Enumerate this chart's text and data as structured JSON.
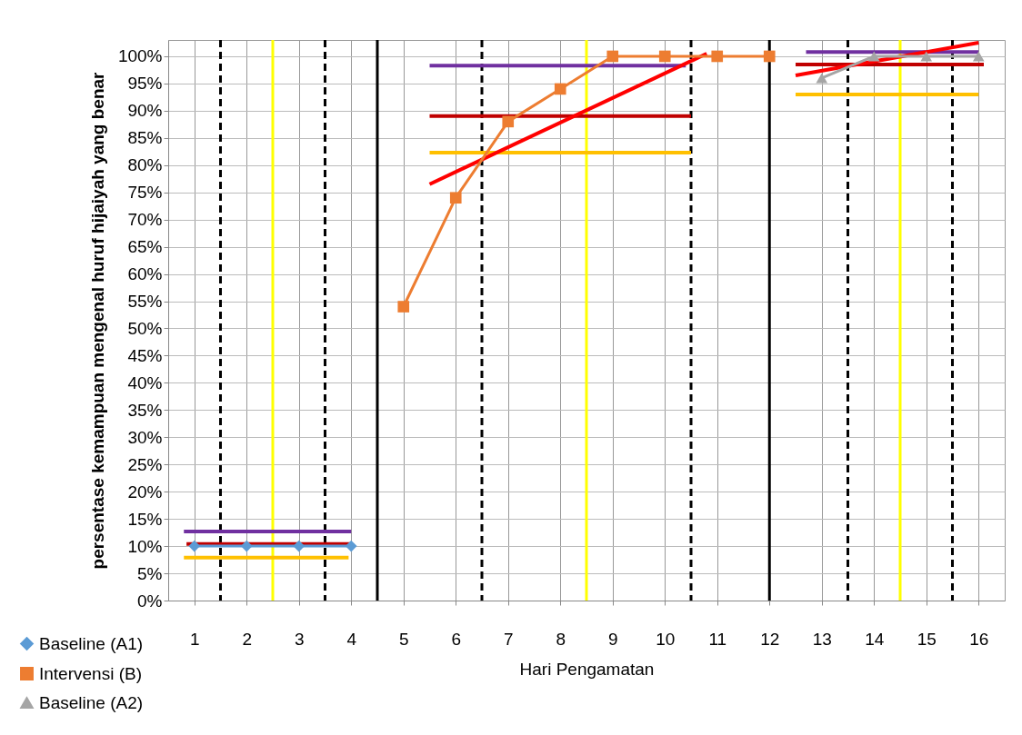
{
  "chart_data": {
    "type": "line",
    "xlabel": "Hari Pengamatan",
    "ylabel": "persentase  kemampuan mengenal huruf hijaiyah yang benar",
    "xlim": [
      0.5,
      16.5
    ],
    "xticks": [
      1,
      2,
      3,
      4,
      5,
      6,
      7,
      8,
      9,
      10,
      11,
      12,
      13,
      14,
      15,
      16
    ],
    "ylim": [
      0,
      103
    ],
    "yticks": [
      {
        "value": 0,
        "label": "0%"
      },
      {
        "value": 5,
        "label": "5%"
      },
      {
        "value": 10,
        "label": "10%"
      },
      {
        "value": 15,
        "label": "15%"
      },
      {
        "value": 20,
        "label": "20%"
      },
      {
        "value": 25,
        "label": "25%"
      },
      {
        "value": 30,
        "label": "30%"
      },
      {
        "value": 35,
        "label": "35%"
      },
      {
        "value": 40,
        "label": "40%"
      },
      {
        "value": 45,
        "label": "45%"
      },
      {
        "value": 50,
        "label": "50%"
      },
      {
        "value": 55,
        "label": "55%"
      },
      {
        "value": 60,
        "label": "60%"
      },
      {
        "value": 65,
        "label": "65%"
      },
      {
        "value": 70,
        "label": "70%"
      },
      {
        "value": 75,
        "label": "75%"
      },
      {
        "value": 80,
        "label": "80%"
      },
      {
        "value": 85,
        "label": "85%"
      },
      {
        "value": 90,
        "label": "90%"
      },
      {
        "value": 95,
        "label": "95%"
      },
      {
        "value": 100,
        "label": "100%"
      }
    ],
    "grid": true,
    "legend": "bottom left",
    "series": [
      {
        "name": "Baseline (A1)",
        "color": "#5b9bd5",
        "marker": "diamond",
        "x": [
          1,
          2,
          3,
          4
        ],
        "values": [
          10,
          10,
          10,
          10
        ]
      },
      {
        "name": "Intervensi (B)",
        "color": "#ed7d31",
        "marker": "square",
        "x": [
          5,
          6,
          7,
          8,
          9,
          10,
          11,
          12
        ],
        "values": [
          54,
          74,
          88,
          94,
          100,
          100,
          100,
          100
        ]
      },
      {
        "name": "Baseline (A2)",
        "color": "#a5a5a5",
        "marker": "triangle",
        "x": [
          13,
          14,
          15,
          16
        ],
        "values": [
          96,
          100,
          100,
          100
        ]
      },
      {
        "color": "#7030a0",
        "marker": "none",
        "x": [
          0.8,
          4.0
        ],
        "values": [
          12.7,
          12.7
        ]
      },
      {
        "color": "#c00000",
        "marker": "none",
        "x": [
          0.85,
          4.0
        ],
        "values": [
          10.4,
          10.4
        ]
      },
      {
        "color": "#ffc000",
        "marker": "none",
        "x": [
          0.8,
          3.95
        ],
        "values": [
          7.9,
          7.9
        ]
      },
      {
        "color": "#7030a0",
        "marker": "none",
        "x": [
          5.5,
          10.4
        ],
        "values": [
          98.3,
          98.3
        ]
      },
      {
        "color": "#c00000",
        "marker": "none",
        "x": [
          5.5,
          10.5
        ],
        "values": [
          89,
          89
        ]
      },
      {
        "color": "#ffc000",
        "marker": "none",
        "x": [
          5.5,
          10.5
        ],
        "values": [
          82.3,
          82.3
        ]
      },
      {
        "color": "#ff0000",
        "marker": "none",
        "x": [
          5.5,
          10.8
        ],
        "values": [
          76.5,
          100.5
        ]
      },
      {
        "color": "#7030a0",
        "marker": "none",
        "x": [
          12.7,
          16.0
        ],
        "values": [
          100.8,
          100.8
        ]
      },
      {
        "color": "#c00000",
        "marker": "none",
        "x": [
          12.5,
          16.1
        ],
        "values": [
          98.5,
          98.5
        ]
      },
      {
        "color": "#ffc000",
        "marker": "none",
        "x": [
          12.5,
          16.0
        ],
        "values": [
          93,
          93
        ]
      },
      {
        "color": "#ff0000",
        "marker": "none",
        "x": [
          12.5,
          16.0
        ],
        "values": [
          96.5,
          102.5
        ]
      }
    ],
    "ref_lines": [
      {
        "axis": "x",
        "value": 1.5,
        "color": "#000000",
        "line_style": "dashed"
      },
      {
        "axis": "x",
        "value": 3.5,
        "color": "#000000",
        "line_style": "dashed"
      },
      {
        "axis": "x",
        "value": 6.5,
        "color": "#000000",
        "line_style": "dashed"
      },
      {
        "axis": "x",
        "value": 10.5,
        "color": "#000000",
        "line_style": "dashed"
      },
      {
        "axis": "x",
        "value": 13.5,
        "color": "#000000",
        "line_style": "dashed"
      },
      {
        "axis": "x",
        "value": 15.5,
        "color": "#000000",
        "line_style": "dashed"
      },
      {
        "axis": "x",
        "value": 2.5,
        "color": "#ffff00",
        "line_style": "solid"
      },
      {
        "axis": "x",
        "value": 8.5,
        "color": "#ffff00",
        "line_style": "solid"
      },
      {
        "axis": "x",
        "value": 14.5,
        "color": "#ffff00",
        "line_style": "solid"
      },
      {
        "axis": "x",
        "value": 4.5,
        "color": "#000000",
        "line_style": "solid"
      },
      {
        "axis": "x",
        "value": 12,
        "color": "#000000",
        "line_style": "solid"
      }
    ]
  }
}
